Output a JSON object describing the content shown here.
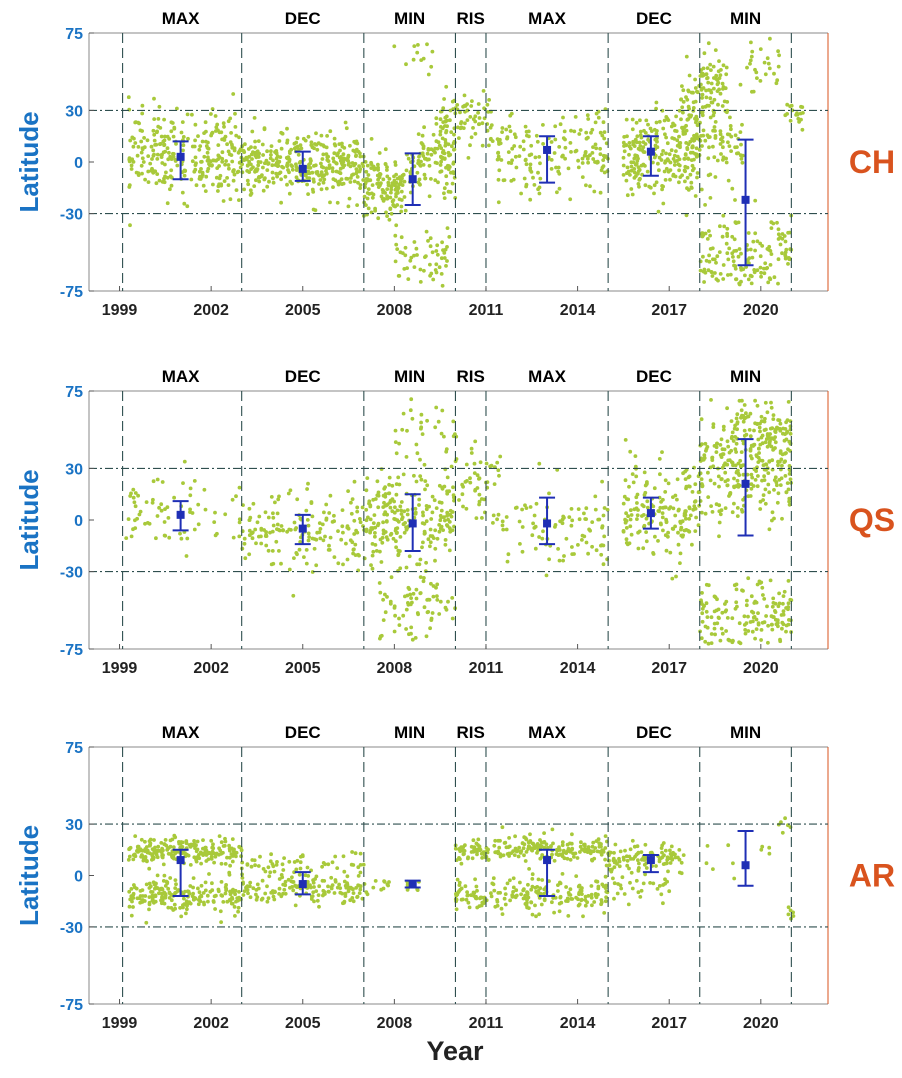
{
  "figure": {
    "xlabel": "Year",
    "colors": {
      "points": "#a8c93a",
      "errorbar": "#1f2fb5",
      "axis_label": "#1a73c4",
      "panel_label": "#d9531e",
      "right_axis": "#d9531e",
      "vline": "#2f4f4f"
    }
  },
  "chart_data": [
    {
      "type": "scatter",
      "panel_label": "CH",
      "ylabel": "Latitude",
      "xlim": [
        1998.0,
        2022.2
      ],
      "ylim": [
        -75,
        75
      ],
      "xticks": [
        1999,
        2002,
        2005,
        2008,
        2011,
        2014,
        2017,
        2020
      ],
      "yticks": [
        -75,
        -30,
        0,
        30,
        75
      ],
      "hlines": [
        30,
        -30
      ],
      "phase_boundaries": [
        1999.1,
        2003.0,
        2007.0,
        2010.0,
        2011.0,
        2015.0,
        2018.0,
        2021.0
      ],
      "phases": [
        {
          "label": "MAX",
          "x": 2001.0
        },
        {
          "label": "DEC",
          "x": 2005.0
        },
        {
          "label": "MIN",
          "x": 2008.5
        },
        {
          "label": "RIS",
          "x": 2010.5
        },
        {
          "label": "MAX",
          "x": 2013.0
        },
        {
          "label": "DEC",
          "x": 2016.5
        },
        {
          "label": "MIN",
          "x": 2019.5
        }
      ],
      "errorbars": [
        {
          "x": 2001.0,
          "mean": 3,
          "low": -10,
          "high": 12
        },
        {
          "x": 2005.0,
          "mean": -4,
          "low": -11,
          "high": 6
        },
        {
          "x": 2008.6,
          "mean": -10,
          "low": -25,
          "high": 5
        },
        {
          "x": 2013.0,
          "mean": 7,
          "low": -12,
          "high": 15
        },
        {
          "x": 2016.4,
          "mean": 6,
          "low": -8,
          "high": 15
        },
        {
          "x": 2019.5,
          "mean": -22,
          "low": -60,
          "high": 13
        }
      ],
      "clusters": [
        {
          "x0": 1999.3,
          "x1": 2003.0,
          "y": 5,
          "sd": 12,
          "n": 280
        },
        {
          "x0": 2003.0,
          "x1": 2007.0,
          "y": -2,
          "sd": 9,
          "n": 340
        },
        {
          "x0": 2007.0,
          "x1": 2008.4,
          "y": -15,
          "sd": 9,
          "n": 130
        },
        {
          "x0": 2008.4,
          "x1": 2010.0,
          "y": 0,
          "sd": 10,
          "n": 120
        },
        {
          "x0": 2008.0,
          "x1": 2009.8,
          "y": -55,
          "sd": 9,
          "n": 55
        },
        {
          "x0": 2007.8,
          "x1": 2009.5,
          "y": 62,
          "sd": 6,
          "n": 12
        },
        {
          "x0": 2009.5,
          "x1": 2011.2,
          "y": 25,
          "sd": 8,
          "n": 80
        },
        {
          "x0": 2011.2,
          "x1": 2015.0,
          "y": 5,
          "sd": 12,
          "n": 170
        },
        {
          "x0": 2015.5,
          "x1": 2018.0,
          "y": 5,
          "sd": 12,
          "n": 240
        },
        {
          "x0": 2017.3,
          "x1": 2018.6,
          "y": 30,
          "sd": 12,
          "n": 70
        },
        {
          "x0": 2018.0,
          "x1": 2018.9,
          "y": 45,
          "sd": 10,
          "n": 50
        },
        {
          "x0": 2018.0,
          "x1": 2021.0,
          "y": -55,
          "sd": 12,
          "n": 150
        },
        {
          "x0": 2018.0,
          "x1": 2019.5,
          "y": 10,
          "sd": 12,
          "n": 60
        },
        {
          "x0": 2019.5,
          "x1": 2020.6,
          "y": 58,
          "sd": 8,
          "n": 25
        },
        {
          "x0": 2020.8,
          "x1": 2021.4,
          "y": 28,
          "sd": 4,
          "n": 18
        }
      ]
    },
    {
      "type": "scatter",
      "panel_label": "QS",
      "ylabel": "Latitude",
      "xlim": [
        1998.0,
        2022.2
      ],
      "ylim": [
        -75,
        75
      ],
      "xticks": [
        1999,
        2002,
        2005,
        2008,
        2011,
        2014,
        2017,
        2020
      ],
      "yticks": [
        -75,
        -30,
        0,
        30,
        75
      ],
      "hlines": [
        30,
        -30
      ],
      "phase_boundaries": [
        1999.1,
        2003.0,
        2007.0,
        2010.0,
        2011.0,
        2015.0,
        2018.0,
        2021.0
      ],
      "phases": [
        {
          "label": "MAX",
          "x": 2001.0
        },
        {
          "label": "DEC",
          "x": 2005.0
        },
        {
          "label": "MIN",
          "x": 2008.5
        },
        {
          "label": "RIS",
          "x": 2010.5
        },
        {
          "label": "MAX",
          "x": 2013.0
        },
        {
          "label": "DEC",
          "x": 2016.5
        },
        {
          "label": "MIN",
          "x": 2019.5
        }
      ],
      "errorbars": [
        {
          "x": 2001.0,
          "mean": 3,
          "low": -6,
          "high": 11
        },
        {
          "x": 2005.0,
          "mean": -5,
          "low": -14,
          "high": 3
        },
        {
          "x": 2008.6,
          "mean": -2,
          "low": -18,
          "high": 15
        },
        {
          "x": 2013.0,
          "mean": -2,
          "low": -14,
          "high": 13
        },
        {
          "x": 2016.4,
          "mean": 4,
          "low": -5,
          "high": 13
        },
        {
          "x": 2019.5,
          "mean": 21,
          "low": -9,
          "high": 47
        }
      ],
      "clusters": [
        {
          "x0": 1999.2,
          "x1": 2003.0,
          "y": 4,
          "sd": 12,
          "n": 70
        },
        {
          "x0": 2003.0,
          "x1": 2007.0,
          "y": -8,
          "sd": 12,
          "n": 160
        },
        {
          "x0": 2007.0,
          "x1": 2010.0,
          "y": 0,
          "sd": 14,
          "n": 230
        },
        {
          "x0": 2007.5,
          "x1": 2010.0,
          "y": -50,
          "sd": 10,
          "n": 70
        },
        {
          "x0": 2008.0,
          "x1": 2010.0,
          "y": 55,
          "sd": 9,
          "n": 30
        },
        {
          "x0": 2010.0,
          "x1": 2011.5,
          "y": 20,
          "sd": 12,
          "n": 50
        },
        {
          "x0": 2011.5,
          "x1": 2015.0,
          "y": -2,
          "sd": 14,
          "n": 90
        },
        {
          "x0": 2015.5,
          "x1": 2018.0,
          "y": 5,
          "sd": 14,
          "n": 170
        },
        {
          "x0": 2018.0,
          "x1": 2021.0,
          "y": 30,
          "sd": 14,
          "n": 260
        },
        {
          "x0": 2018.0,
          "x1": 2021.0,
          "y": -55,
          "sd": 10,
          "n": 150
        },
        {
          "x0": 2019.0,
          "x1": 2021.0,
          "y": 55,
          "sd": 6,
          "n": 80
        }
      ]
    },
    {
      "type": "scatter",
      "panel_label": "AR",
      "ylabel": "Latitude",
      "xlim": [
        1998.0,
        2022.2
      ],
      "ylim": [
        -75,
        75
      ],
      "xticks": [
        1999,
        2002,
        2005,
        2008,
        2011,
        2014,
        2017,
        2020
      ],
      "yticks": [
        -75,
        -30,
        0,
        30,
        75
      ],
      "hlines": [
        30,
        -30
      ],
      "phase_boundaries": [
        1999.1,
        2003.0,
        2007.0,
        2010.0,
        2011.0,
        2015.0,
        2018.0,
        2021.0
      ],
      "phases": [
        {
          "label": "MAX",
          "x": 2001.0
        },
        {
          "label": "DEC",
          "x": 2005.0
        },
        {
          "label": "MIN",
          "x": 2008.5
        },
        {
          "label": "RIS",
          "x": 2010.5
        },
        {
          "label": "MAX",
          "x": 2013.0
        },
        {
          "label": "DEC",
          "x": 2016.5
        },
        {
          "label": "MIN",
          "x": 2019.5
        }
      ],
      "errorbars": [
        {
          "x": 2001.0,
          "mean": 9,
          "low": -12,
          "high": 15
        },
        {
          "x": 2005.0,
          "mean": -5,
          "low": -11,
          "high": 2
        },
        {
          "x": 2008.6,
          "mean": -5,
          "low": -7,
          "high": -3
        },
        {
          "x": 2013.0,
          "mean": 9,
          "low": -12,
          "high": 15
        },
        {
          "x": 2016.4,
          "mean": 9,
          "low": 2,
          "high": 12
        },
        {
          "x": 2019.5,
          "mean": 6,
          "low": -6,
          "high": 26
        }
      ],
      "clusters": [
        {
          "x0": 1999.3,
          "x1": 2003.0,
          "y": 14,
          "sd": 4,
          "n": 220
        },
        {
          "x0": 1999.3,
          "x1": 2003.0,
          "y": -12,
          "sd": 5,
          "n": 200
        },
        {
          "x0": 2003.0,
          "x1": 2007.0,
          "y": 6,
          "sd": 4,
          "n": 60
        },
        {
          "x0": 2003.0,
          "x1": 2007.0,
          "y": -8,
          "sd": 4,
          "n": 140
        },
        {
          "x0": 2007.0,
          "x1": 2009.0,
          "y": -6,
          "sd": 3,
          "n": 20
        },
        {
          "x0": 2010.0,
          "x1": 2015.0,
          "y": 15,
          "sd": 4,
          "n": 230
        },
        {
          "x0": 2010.0,
          "x1": 2015.0,
          "y": -12,
          "sd": 5,
          "n": 200
        },
        {
          "x0": 2015.0,
          "x1": 2017.5,
          "y": 10,
          "sd": 4,
          "n": 100
        },
        {
          "x0": 2015.0,
          "x1": 2017.0,
          "y": -6,
          "sd": 4,
          "n": 30
        },
        {
          "x0": 2018.0,
          "x1": 2020.5,
          "y": 5,
          "sd": 10,
          "n": 10
        },
        {
          "x0": 2020.5,
          "x1": 2021.0,
          "y": 28,
          "sd": 3,
          "n": 6
        },
        {
          "x0": 2020.9,
          "x1": 2021.1,
          "y": -20,
          "sd": 3,
          "n": 6
        }
      ]
    }
  ]
}
